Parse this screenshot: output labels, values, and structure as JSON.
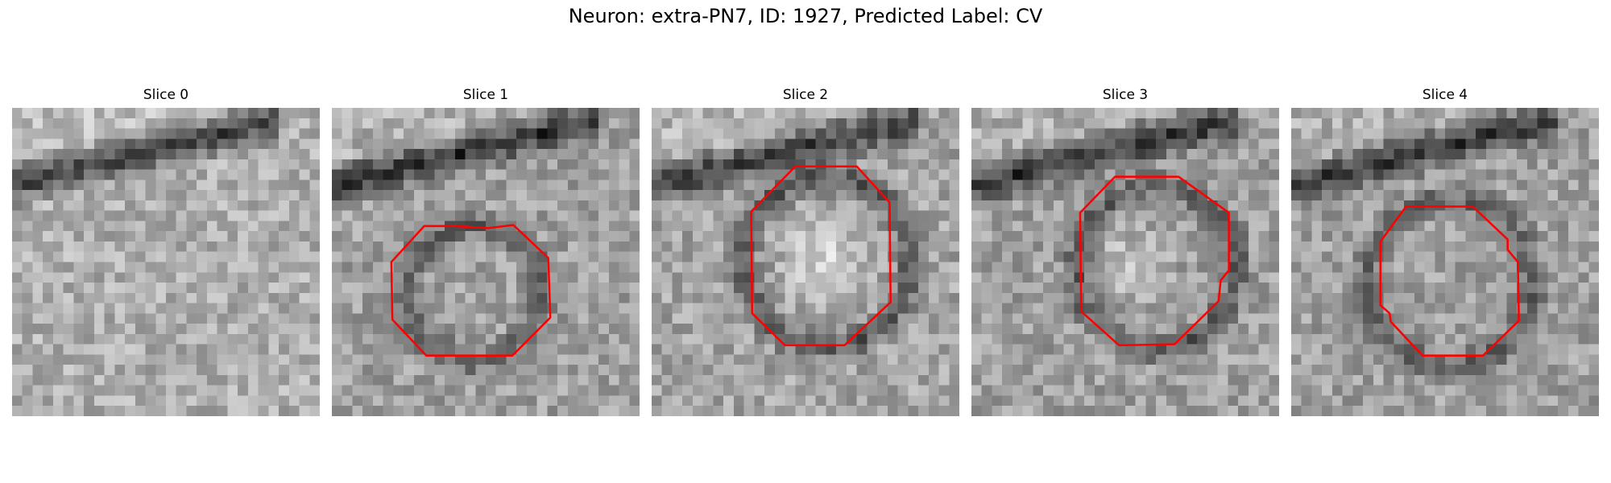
{
  "figure": {
    "title": "Neuron: extra-PN7, ID: 1927, Predicted Label: CV"
  },
  "colors": {
    "contour": "#ff0000",
    "background": "#ffffff"
  },
  "panels": [
    {
      "title": "Slice 0",
      "has_contour": false
    },
    {
      "title": "Slice 1",
      "has_contour": true
    },
    {
      "title": "Slice 2",
      "has_contour": true
    },
    {
      "title": "Slice 3",
      "has_contour": true
    },
    {
      "title": "Slice 4",
      "has_contour": true
    }
  ]
}
